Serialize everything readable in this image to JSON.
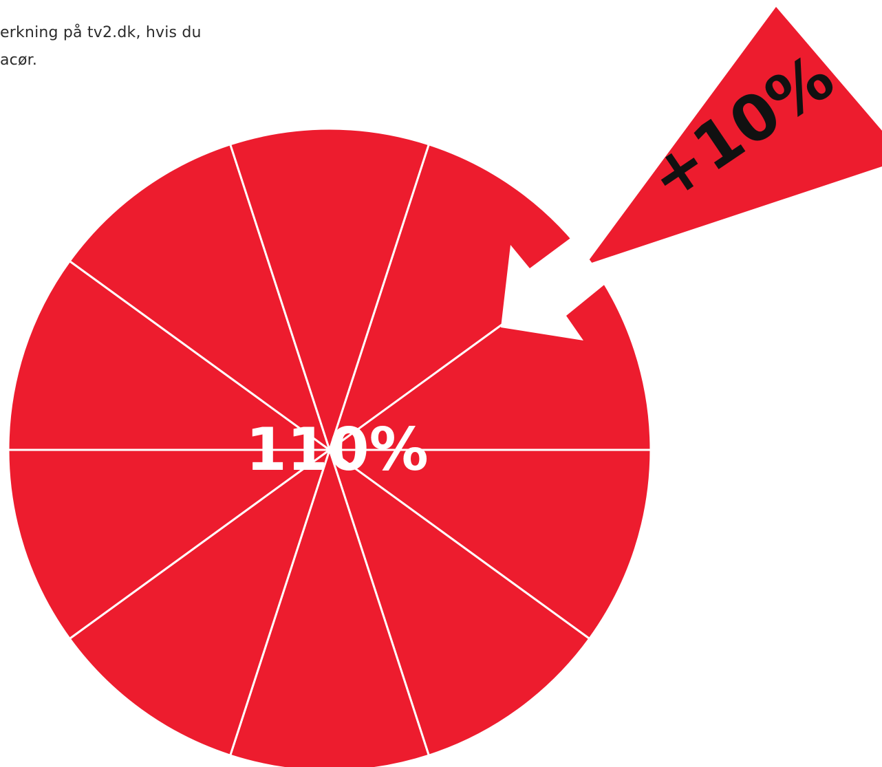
{
  "intro_text": "erkning på tv2.dk, hvis du\nacør.",
  "chart_data": {
    "type": "pie",
    "slices": 10,
    "center_label": "110%",
    "added_slice_label": "+10%",
    "colors": {
      "slice": "#ed1c2e",
      "divider": "#ffffff",
      "label": "#ffffff",
      "added_label": "#111111"
    },
    "icons": {
      "arrow": "arrow-icon"
    }
  }
}
